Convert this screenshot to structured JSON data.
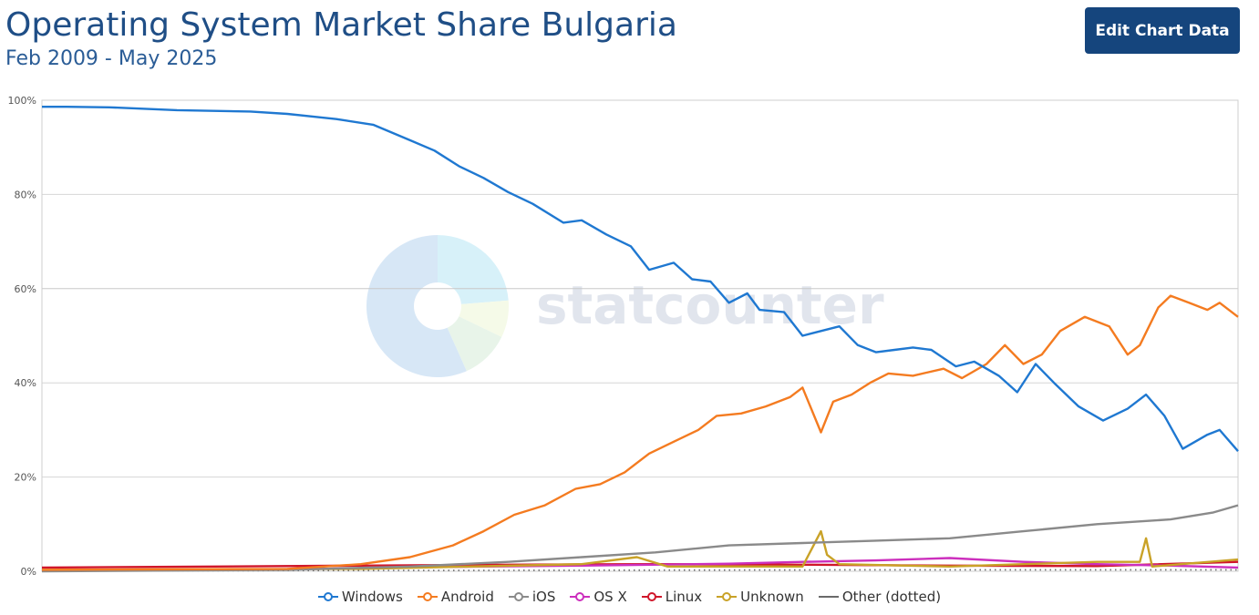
{
  "header": {
    "title": "Operating System Market Share Bulgaria",
    "subtitle": "Feb 2009 - May 2025",
    "edit_button": "Edit Chart Data"
  },
  "watermark": "statcounter",
  "chart_data": {
    "type": "line",
    "x_range": [
      "2009-02",
      "2025-05"
    ],
    "ylim": [
      0,
      100
    ],
    "y_ticks": [
      "0%",
      "20%",
      "40%",
      "60%",
      "80%",
      "100%"
    ],
    "grid": true,
    "legend_position": "bottom",
    "series": [
      {
        "name": "Windows",
        "color": "#1f78d1",
        "marker": "circle",
        "points": [
          [
            "2009-02",
            98.6
          ],
          [
            "2009-06",
            98.6
          ],
          [
            "2010-01",
            98.5
          ],
          [
            "2010-12",
            97.9
          ],
          [
            "2011-12",
            97.6
          ],
          [
            "2012-06",
            97.1
          ],
          [
            "2013-02",
            96.0
          ],
          [
            "2013-08",
            94.8
          ],
          [
            "2014-02",
            91.5
          ],
          [
            "2014-06",
            89.3
          ],
          [
            "2014-10",
            86.0
          ],
          [
            "2015-02",
            83.5
          ],
          [
            "2015-06",
            80.5
          ],
          [
            "2015-10",
            78.0
          ],
          [
            "2016-03",
            74.0
          ],
          [
            "2016-06",
            74.5
          ],
          [
            "2016-10",
            71.5
          ],
          [
            "2017-02",
            69.0
          ],
          [
            "2017-05",
            64.0
          ],
          [
            "2017-09",
            65.5
          ],
          [
            "2017-12",
            62.0
          ],
          [
            "2018-03",
            61.5
          ],
          [
            "2018-06",
            57.0
          ],
          [
            "2018-09",
            59.0
          ],
          [
            "2018-11",
            55.5
          ],
          [
            "2019-03",
            55.0
          ],
          [
            "2019-06",
            50.0
          ],
          [
            "2019-09",
            51.0
          ],
          [
            "2019-12",
            52.0
          ],
          [
            "2020-03",
            48.0
          ],
          [
            "2020-06",
            46.5
          ],
          [
            "2020-09",
            47.0
          ],
          [
            "2020-12",
            47.5
          ],
          [
            "2021-03",
            47.0
          ],
          [
            "2021-07",
            43.5
          ],
          [
            "2021-10",
            44.5
          ],
          [
            "2022-02",
            41.5
          ],
          [
            "2022-05",
            38.0
          ],
          [
            "2022-08",
            44.0
          ],
          [
            "2022-11",
            40.0
          ],
          [
            "2023-03",
            35.0
          ],
          [
            "2023-07",
            32.0
          ],
          [
            "2023-11",
            34.5
          ],
          [
            "2024-02",
            37.5
          ],
          [
            "2024-05",
            33.0
          ],
          [
            "2024-08",
            26.0
          ],
          [
            "2024-12",
            29.0
          ],
          [
            "2025-02",
            30.0
          ],
          [
            "2025-05",
            25.5
          ]
        ]
      },
      {
        "name": "Android",
        "color": "#f47b20",
        "marker": "circle",
        "points": [
          [
            "2009-02",
            0.3
          ],
          [
            "2012-06",
            0.5
          ],
          [
            "2013-06",
            1.5
          ],
          [
            "2014-02",
            3.0
          ],
          [
            "2014-09",
            5.5
          ],
          [
            "2015-02",
            8.5
          ],
          [
            "2015-07",
            12.0
          ],
          [
            "2015-12",
            14.0
          ],
          [
            "2016-05",
            17.5
          ],
          [
            "2016-09",
            18.5
          ],
          [
            "2017-01",
            21.0
          ],
          [
            "2017-05",
            25.0
          ],
          [
            "2017-09",
            27.5
          ],
          [
            "2018-01",
            30.0
          ],
          [
            "2018-04",
            33.0
          ],
          [
            "2018-08",
            33.5
          ],
          [
            "2018-12",
            35.0
          ],
          [
            "2019-04",
            37.0
          ],
          [
            "2019-06",
            39.0
          ],
          [
            "2019-09",
            29.5
          ],
          [
            "2019-11",
            36.0
          ],
          [
            "2020-02",
            37.5
          ],
          [
            "2020-05",
            40.0
          ],
          [
            "2020-08",
            42.0
          ],
          [
            "2020-12",
            41.5
          ],
          [
            "2021-05",
            43.0
          ],
          [
            "2021-08",
            41.0
          ],
          [
            "2021-12",
            44.0
          ],
          [
            "2022-03",
            48.0
          ],
          [
            "2022-06",
            44.0
          ],
          [
            "2022-09",
            46.0
          ],
          [
            "2022-12",
            51.0
          ],
          [
            "2023-04",
            54.0
          ],
          [
            "2023-08",
            52.0
          ],
          [
            "2023-11",
            46.0
          ],
          [
            "2024-01",
            48.0
          ],
          [
            "2024-04",
            56.0
          ],
          [
            "2024-06",
            58.5
          ],
          [
            "2024-09",
            57.0
          ],
          [
            "2024-12",
            55.5
          ],
          [
            "2025-02",
            57.0
          ],
          [
            "2025-05",
            54.0
          ]
        ]
      },
      {
        "name": "iOS",
        "color": "#8a8a8a",
        "marker": "circle",
        "points": [
          [
            "2009-02",
            0.0
          ],
          [
            "2012-06",
            0.3
          ],
          [
            "2014-02",
            1.0
          ],
          [
            "2015-06",
            2.0
          ],
          [
            "2016-06",
            3.0
          ],
          [
            "2017-06",
            4.0
          ],
          [
            "2018-06",
            5.5
          ],
          [
            "2019-06",
            6.0
          ],
          [
            "2020-06",
            6.5
          ],
          [
            "2021-06",
            7.0
          ],
          [
            "2022-06",
            8.5
          ],
          [
            "2023-06",
            10.0
          ],
          [
            "2024-06",
            11.0
          ],
          [
            "2025-01",
            12.5
          ],
          [
            "2025-05",
            14.0
          ]
        ]
      },
      {
        "name": "OS X",
        "color": "#cc2fbd",
        "marker": "circle",
        "points": [
          [
            "2009-02",
            0.2
          ],
          [
            "2012-06",
            0.4
          ],
          [
            "2014-06",
            0.9
          ],
          [
            "2016-06",
            1.2
          ],
          [
            "2018-06",
            1.6
          ],
          [
            "2019-06",
            2.0
          ],
          [
            "2020-06",
            2.3
          ],
          [
            "2021-06",
            2.8
          ],
          [
            "2022-06",
            2.0
          ],
          [
            "2023-06",
            1.5
          ],
          [
            "2024-06",
            1.2
          ],
          [
            "2025-05",
            0.8
          ]
        ]
      },
      {
        "name": "Linux",
        "color": "#d0162a",
        "marker": "circle",
        "points": [
          [
            "2009-02",
            0.8
          ],
          [
            "2011-06",
            1.0
          ],
          [
            "2013-06",
            1.2
          ],
          [
            "2015-06",
            1.4
          ],
          [
            "2017-06",
            1.5
          ],
          [
            "2019-06",
            1.4
          ],
          [
            "2021-06",
            1.2
          ],
          [
            "2023-06",
            1.1
          ],
          [
            "2025-05",
            2.0
          ]
        ]
      },
      {
        "name": "Unknown",
        "color": "#c9a227",
        "marker": "circle",
        "points": [
          [
            "2009-02",
            0.3
          ],
          [
            "2013-06",
            0.5
          ],
          [
            "2016-06",
            1.5
          ],
          [
            "2017-03",
            3.0
          ],
          [
            "2017-08",
            1.0
          ],
          [
            "2019-06",
            1.0
          ],
          [
            "2019-09",
            8.5
          ],
          [
            "2019-10",
            3.5
          ],
          [
            "2019-12",
            1.5
          ],
          [
            "2021-06",
            1.0
          ],
          [
            "2022-06",
            1.5
          ],
          [
            "2023-06",
            2.0
          ],
          [
            "2024-01",
            2.0
          ],
          [
            "2024-02",
            7.0
          ],
          [
            "2024-03",
            1.0
          ],
          [
            "2025-05",
            2.5
          ]
        ]
      },
      {
        "name": "Other (dotted)",
        "color": "#6a6a6a",
        "marker": "line",
        "points": [
          [
            "2009-02",
            0.1
          ],
          [
            "2015-06",
            0.2
          ],
          [
            "2020-06",
            0.3
          ],
          [
            "2025-05",
            0.3
          ]
        ]
      }
    ]
  }
}
